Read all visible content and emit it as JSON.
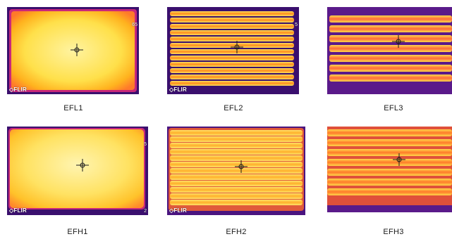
{
  "panels": [
    {
      "caption": "EFL1",
      "flir": "FLIR",
      "scale_top": "65",
      "scale_bot": ""
    },
    {
      "caption": "EFL2",
      "flir": "FLIR",
      "scale_top": "5",
      "scale_bot": ""
    },
    {
      "caption": "EFL3",
      "flir": "",
      "scale_top": "",
      "scale_bot": ""
    },
    {
      "caption": "EFH1",
      "flir": "FLIR",
      "scale_top": "5",
      "scale_bot": "2"
    },
    {
      "caption": "EFH2",
      "flir": "FLIR",
      "scale_top": "",
      "scale_bot": ""
    },
    {
      "caption": "EFH3",
      "flir": "",
      "scale_top": "",
      "scale_bot": ""
    }
  ],
  "colors": {
    "hot": "#fff6a8",
    "warm": "#ffd21e",
    "mid": "#ff9a1a",
    "cool": "#e0306a",
    "cold": "#5a1a8a",
    "background": "#2a0a5e"
  }
}
